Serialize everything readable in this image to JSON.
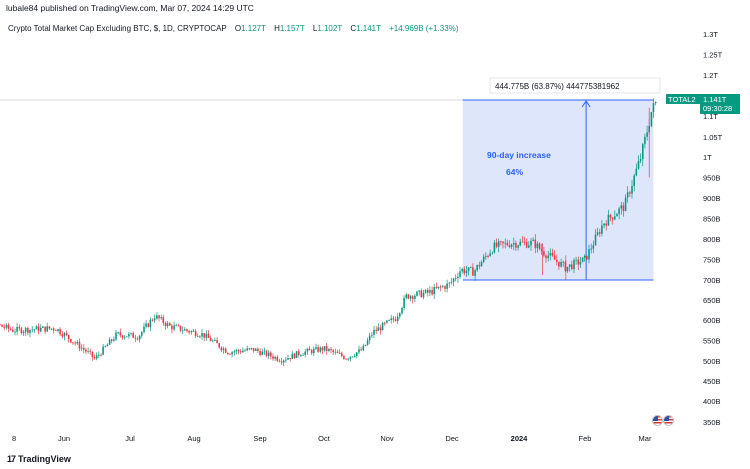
{
  "header": {
    "published": "lubale84 published on TradingView.com, Mar 07, 2024 14:29 UTC"
  },
  "legend": {
    "title": "Crypto Total Market Cap Excluding BTC, $, 1D, CRYPTOCAP",
    "o_label": "O",
    "o_value": "1.127T",
    "h_label": "H",
    "h_value": "1.157T",
    "l_label": "L",
    "l_value": "1.102T",
    "c_label": "C",
    "c_value": "1.141T",
    "change": "+14.969B (+1.33%)"
  },
  "footer": {
    "brand": "TradingView",
    "brand_mark": "17"
  },
  "colors": {
    "up": "#089981",
    "down": "#f23645",
    "measure_fill": "#d6e0fb",
    "measure_line": "#2962ff",
    "annotation_text": "#2962ff"
  },
  "price_scale": {
    "ticks": [
      "1.3T",
      "1.25T",
      "1.2T",
      "1.1T",
      "1.05T",
      "1T",
      "950B",
      "900B",
      "850B",
      "800B",
      "750B",
      "700B",
      "650B",
      "600B",
      "550B",
      "500B",
      "450B",
      "400B",
      "350B"
    ],
    "symbol_label": "TOTAL2",
    "last_price": "1.141T",
    "countdown": "09:30:28"
  },
  "time_scale": {
    "ticks": [
      "8",
      "Jun",
      "Jul",
      "Aug",
      "Sep",
      "Oct",
      "Nov",
      "Dec",
      "2024",
      "Feb",
      "Mar"
    ]
  },
  "annotation": {
    "measure_label": "444.775B (63.87%) 444775381962",
    "increase_label": "90-day increase",
    "increase_pct": "64%"
  },
  "chart_data": {
    "type": "candlestick",
    "title": "Crypto Total Market Cap Excluding BTC, $, 1D, CRYPTOCAP",
    "xlabel": "",
    "ylabel": "",
    "x_range": [
      "May 2023",
      "Mar 2024"
    ],
    "ylim": [
      "350B",
      "1.3T"
    ],
    "series": [
      {
        "name": "TOTAL2",
        "anchors": [
          {
            "date": "May 8",
            "value": 615
          },
          {
            "date": "May 20",
            "value": 575
          },
          {
            "date": "May 30",
            "value": 580
          },
          {
            "date": "Jun 12",
            "value": 520
          },
          {
            "date": "Jun 15",
            "value": 505
          },
          {
            "date": "Jun 25",
            "value": 565
          },
          {
            "date": "Jul 5",
            "value": 560
          },
          {
            "date": "Jul 13",
            "value": 610
          },
          {
            "date": "Jul 20",
            "value": 585
          },
          {
            "date": "Aug 5",
            "value": 565
          },
          {
            "date": "Aug 17",
            "value": 522
          },
          {
            "date": "Aug 29",
            "value": 528
          },
          {
            "date": "Sep 11",
            "value": 503
          },
          {
            "date": "Sep 20",
            "value": 520
          },
          {
            "date": "Oct 1",
            "value": 530
          },
          {
            "date": "Oct 12",
            "value": 508
          },
          {
            "date": "Oct 20",
            "value": 528
          },
          {
            "date": "Oct 25",
            "value": 570
          },
          {
            "date": "Nov 5",
            "value": 605
          },
          {
            "date": "Nov 10",
            "value": 660
          },
          {
            "date": "Nov 20",
            "value": 668
          },
          {
            "date": "Nov 30",
            "value": 690
          },
          {
            "date": "Dec 5",
            "value": 725
          },
          {
            "date": "Dec 11",
            "value": 720
          },
          {
            "date": "Dec 20",
            "value": 780
          },
          {
            "date": "Dec 28",
            "value": 790
          },
          {
            "date": "Jan 8",
            "value": 790
          },
          {
            "date": "Jan 12",
            "value": 770
          },
          {
            "date": "Jan 23",
            "value": 730
          },
          {
            "date": "Feb 1",
            "value": 750
          },
          {
            "date": "Feb 10",
            "value": 840
          },
          {
            "date": "Feb 20",
            "value": 880
          },
          {
            "date": "Feb 28",
            "value": 1000
          },
          {
            "date": "Mar 4",
            "value": 1110
          },
          {
            "date": "Mar 7",
            "value": 1141
          }
        ],
        "last": {
          "open": "1.127T",
          "high": "1.157T",
          "low": "1.102T",
          "close": "1.141T"
        }
      }
    ],
    "annotations": [
      {
        "type": "measure",
        "from": "Dec 6",
        "to": "Mar 5",
        "label": "444.775B (63.87%) 444775381962"
      },
      {
        "type": "text",
        "label": "90-day increase 64%"
      }
    ],
    "grid": false,
    "legend": "top-left"
  }
}
